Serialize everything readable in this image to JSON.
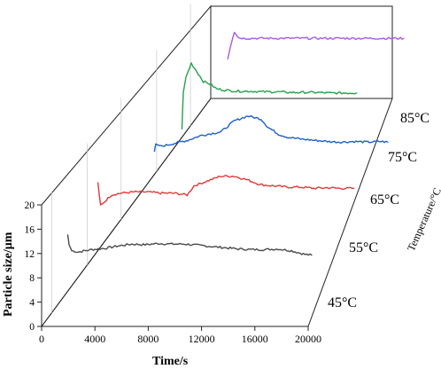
{
  "chart_data": {
    "type": "line",
    "subtype": "3d-waterfall",
    "title": "",
    "xlabel": "Time/s",
    "ylabel": "Particle size/μm",
    "zlabel": "Temperature/°C",
    "xlim": [
      0,
      20000
    ],
    "ylim": [
      0,
      20
    ],
    "x_ticks": [
      "0",
      "4000",
      "8000",
      "12000",
      "16000",
      "20000"
    ],
    "y_ticks": [
      "0",
      "4",
      "8",
      "12",
      "16",
      "20"
    ],
    "z_ticks": [
      "45°C",
      "55°C",
      "65°C",
      "75°C",
      "85°C"
    ],
    "grid": true,
    "series": [
      {
        "name": "45°C",
        "color": "#4a4a4a",
        "x": [
          1200,
          1300,
          1500,
          2000,
          3000,
          4000,
          5000,
          6000,
          7000,
          8000,
          9000,
          10000,
          11000,
          12000,
          13000,
          14000,
          15000,
          16000,
          17000,
          18000,
          19000,
          19500
        ],
        "y": [
          12.8,
          11.2,
          10.2,
          10.0,
          10.4,
          10.6,
          11.0,
          11.3,
          11.2,
          11.4,
          11.3,
          11.3,
          11.1,
          10.9,
          10.7,
          10.5,
          10.4,
          10.4,
          10.5,
          10.2,
          9.6,
          9.5
        ]
      },
      {
        "name": "55°C",
        "color": "#e03838",
        "x": [
          800,
          900,
          1000,
          1300,
          1800,
          2500,
          3500,
          4500,
          5500,
          6500,
          7500,
          8000,
          9000,
          10000,
          11000,
          12000,
          13000,
          14000,
          15000,
          16000,
          17000,
          18000,
          19000,
          20000
        ],
        "y": [
          13.5,
          11.5,
          9.8,
          10.4,
          11.5,
          11.8,
          12.0,
          12.0,
          11.8,
          11.8,
          11.5,
          13.0,
          13.8,
          14.6,
          14.6,
          14.0,
          13.2,
          13.0,
          12.8,
          12.8,
          12.6,
          12.7,
          12.6,
          12.6
        ]
      },
      {
        "name": "65°C",
        "color": "#1e5fcc",
        "x": [
          2500,
          2600,
          3000,
          4000,
          5000,
          6000,
          7000,
          7500,
          8500,
          9500,
          10500,
          11000,
          11800,
          12500,
          13500,
          14500,
          15500,
          16500,
          17500,
          18500,
          19500,
          20000
        ],
        "y": [
          11.2,
          12.4,
          12.0,
          12.5,
          13.0,
          13.8,
          14.2,
          14.4,
          16.2,
          17.0,
          16.5,
          15.2,
          14.0,
          13.5,
          13.2,
          13.0,
          12.8,
          12.7,
          12.8,
          12.7,
          12.8,
          12.7
        ]
      },
      {
        "name": "75°C",
        "color": "#26a04a",
        "x": [
          1900,
          2000,
          2200,
          2600,
          3000,
          3500,
          4000,
          4500,
          5000,
          6000,
          7000,
          8000,
          9000,
          10000,
          11000,
          12000,
          13000,
          14000,
          15000
        ],
        "y": [
          7.0,
          13.0,
          15.5,
          17.8,
          16.5,
          14.8,
          14.4,
          13.6,
          13.4,
          13.2,
          13.2,
          13.1,
          13.1,
          13.0,
          13.0,
          13.0,
          12.9,
          12.9,
          12.9
        ]
      },
      {
        "name": "85°C",
        "color": "#a95be0",
        "x": [
          2800,
          3000,
          3300,
          3600,
          4000,
          5000,
          6000,
          7000,
          8000,
          9000,
          10000,
          11000,
          12000,
          13000,
          14000,
          15000,
          16000
        ],
        "y": [
          11.0,
          13.0,
          15.5,
          14.5,
          14.4,
          14.4,
          14.4,
          14.4,
          14.4,
          14.4,
          14.4,
          14.4,
          14.4,
          14.4,
          14.4,
          14.4,
          14.4
        ]
      }
    ]
  }
}
